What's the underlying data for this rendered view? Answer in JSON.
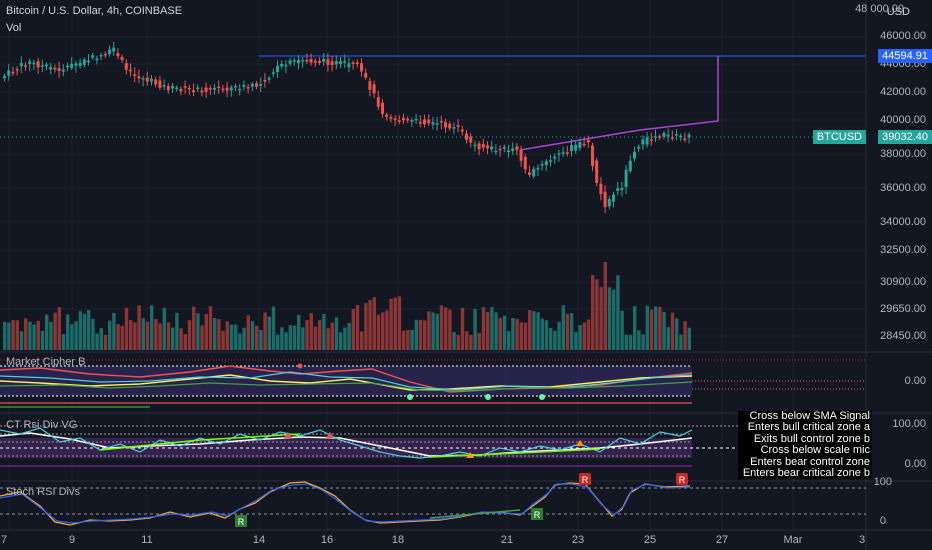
{
  "header": {
    "title": "Bitcoin / U.S. Dollar, 4h, COINBASE",
    "volume_label": "Vol",
    "currency": "USD"
  },
  "price_axis": {
    "ticks": [
      "48 000.00",
      "46000.00",
      "44000.00",
      "42000.00",
      "40000.00",
      "38000.00",
      "36000.00",
      "34000.00",
      "32500.00",
      "30900.00",
      "29650.00",
      "28450.00"
    ],
    "level_tag": "44594.91",
    "symbol_tag": "BTCUSD",
    "last_price_tag": "39032.40"
  },
  "panes": {
    "market_cipher": {
      "title": "Market Cipher B",
      "tick": "0.00"
    },
    "ct_rsi": {
      "title": "CT Rsi Div VG",
      "ticks": [
        "100.00",
        "0.00"
      ]
    },
    "stoch_rsi": {
      "title": "Stoch RSI Divs",
      "ticks": [
        "100",
        "0"
      ]
    }
  },
  "alerts": [
    "Cross below SMA Signal",
    "Enters bull critical zone a",
    "Exits bull control zone b",
    "Cross below scale mic",
    "Enters bear control zone",
    "Enters bear critical zone b"
  ],
  "x_axis": [
    "7",
    "9",
    "11",
    "14",
    "16",
    "18",
    "21",
    "23",
    "25",
    "27",
    "Mar",
    "3"
  ],
  "colors": {
    "background": "#131722",
    "up": "#26a69a",
    "down": "#ef5350",
    "level_line": "#2962ff",
    "trend_line": "#9c27b0",
    "symbol_tag": "#26a69a",
    "level_tag": "#2962ff"
  }
}
